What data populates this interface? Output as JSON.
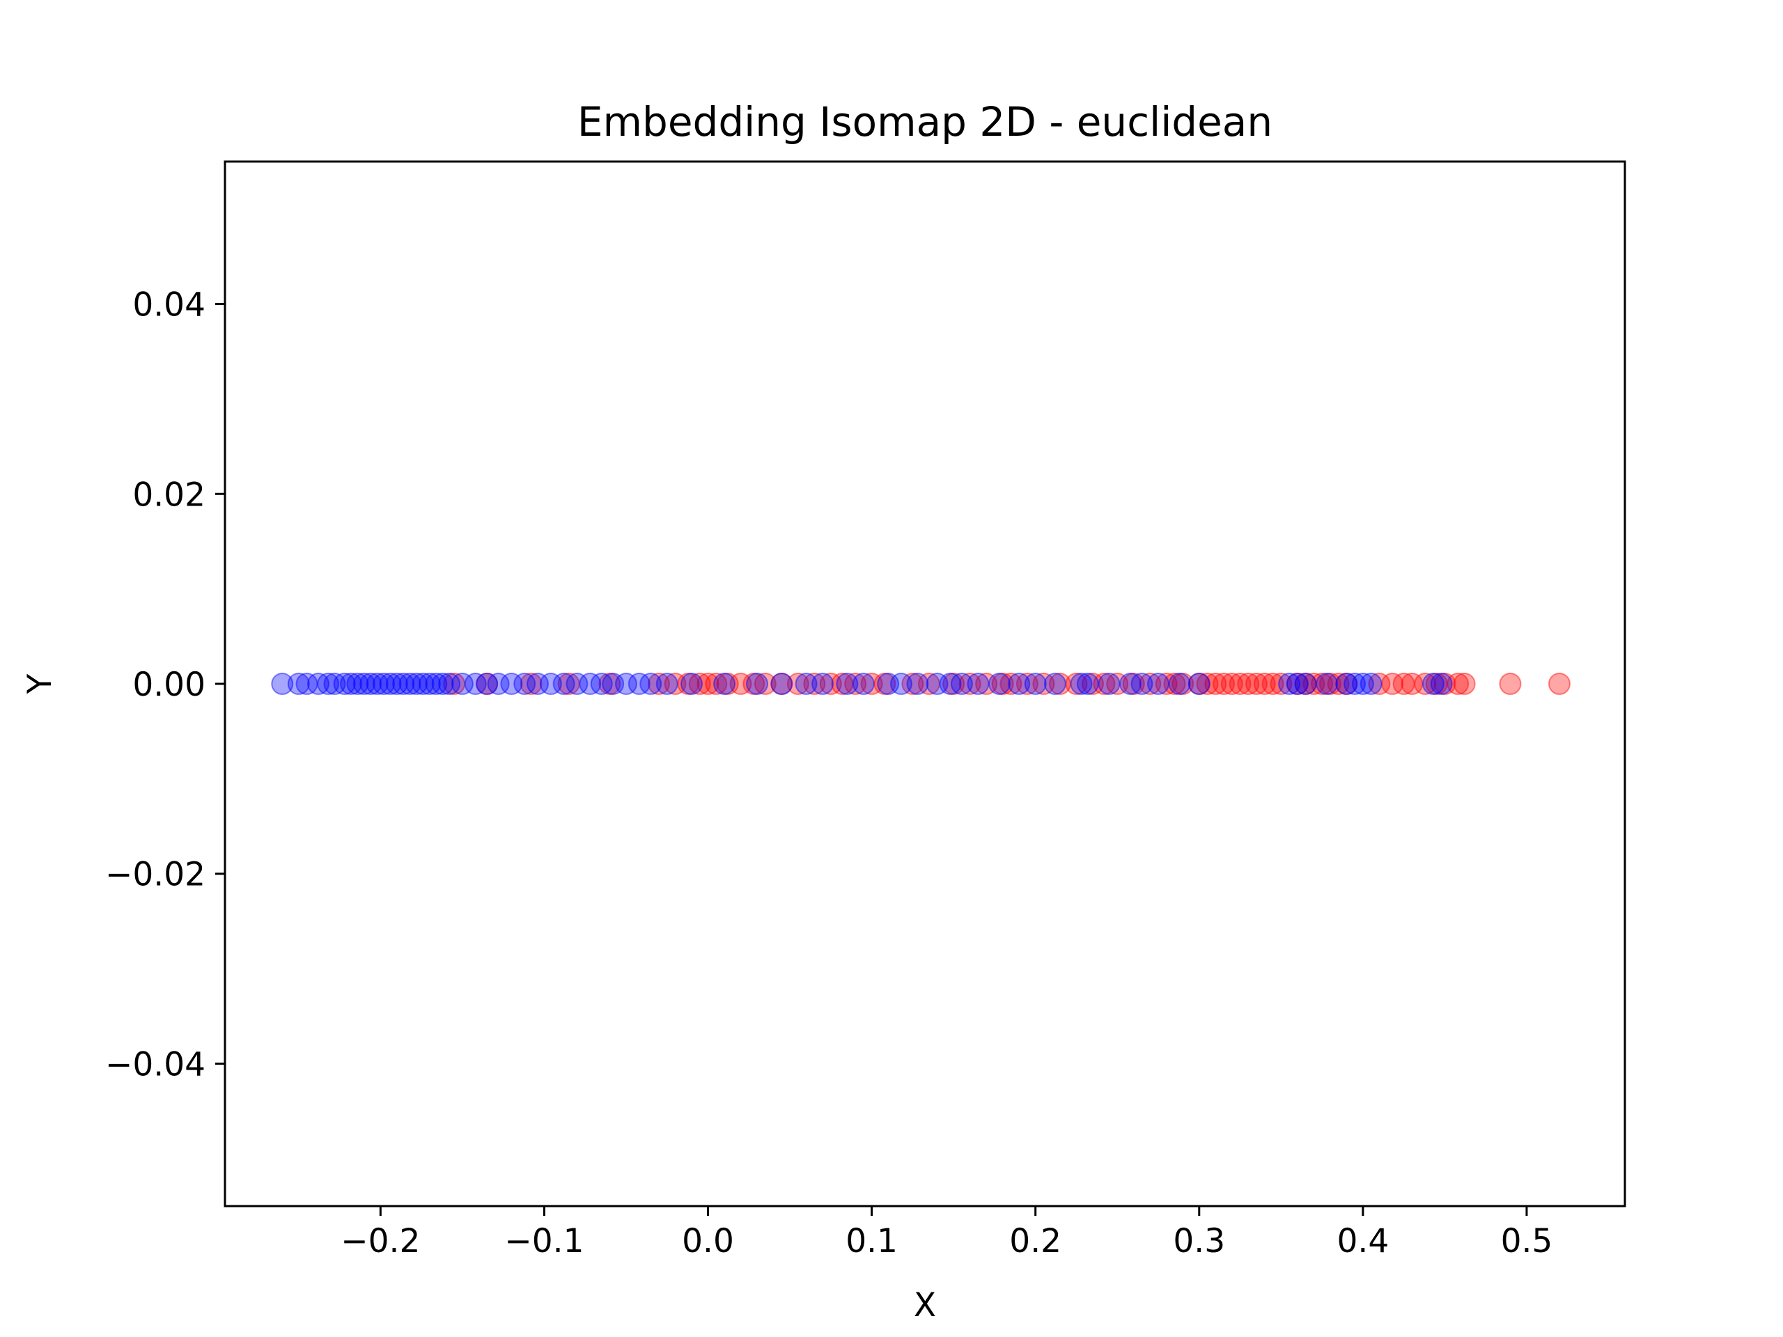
{
  "chart_data": {
    "type": "scatter",
    "title": "Embedding Isomap 2D - euclidean",
    "xlabel": "X",
    "ylabel": "Y",
    "xlim": [
      -0.295,
      0.56
    ],
    "ylim": [
      -0.055,
      0.055
    ],
    "x_ticks": [
      "−0.2",
      "−0.1",
      "0.0",
      "0.1",
      "0.2",
      "0.3",
      "0.4",
      "0.5"
    ],
    "x_tick_values": [
      -0.2,
      -0.1,
      0.0,
      0.1,
      0.2,
      0.3,
      0.4,
      0.5
    ],
    "y_ticks": [
      "0.04",
      "0.02",
      "0.00",
      "−0.02",
      "−0.04"
    ],
    "y_tick_values": [
      0.04,
      0.02,
      0.0,
      -0.02,
      -0.04
    ],
    "grid": false,
    "series": [
      {
        "color": "#ff0000",
        "opacity": 0.35,
        "x": [
          -0.155,
          -0.135,
          -0.108,
          -0.085,
          -0.06,
          -0.03,
          -0.02,
          -0.012,
          -0.005,
          0.0,
          0.005,
          0.012,
          0.02,
          0.028,
          0.035,
          0.045,
          0.055,
          0.065,
          0.075,
          0.082,
          0.09,
          0.1,
          0.108,
          0.125,
          0.135,
          0.15,
          0.16,
          0.17,
          0.18,
          0.185,
          0.195,
          0.205,
          0.215,
          0.225,
          0.235,
          0.242,
          0.25,
          0.26,
          0.27,
          0.28,
          0.285,
          0.29,
          0.3,
          0.305,
          0.31,
          0.315,
          0.32,
          0.325,
          0.33,
          0.335,
          0.34,
          0.345,
          0.35,
          0.36,
          0.365,
          0.37,
          0.375,
          0.38,
          0.385,
          0.39,
          0.41,
          0.418,
          0.425,
          0.43,
          0.438,
          0.445,
          0.45,
          0.458,
          0.462,
          0.49,
          0.52
        ],
        "y": [
          0,
          0,
          0,
          0,
          0,
          0,
          0,
          0,
          0,
          0,
          0,
          0,
          0,
          0,
          0,
          0,
          0,
          0,
          0,
          0,
          0,
          0,
          0,
          0,
          0,
          0,
          0,
          0,
          0,
          0,
          0,
          0,
          0,
          0,
          0,
          0,
          0,
          0,
          0,
          0,
          0,
          0,
          0,
          0,
          0,
          0,
          0,
          0,
          0,
          0,
          0,
          0,
          0,
          0,
          0,
          0,
          0,
          0,
          0,
          0,
          0,
          0,
          0,
          0,
          0,
          0,
          0,
          0,
          0,
          0,
          0
        ]
      },
      {
        "color": "#0000ff",
        "opacity": 0.35,
        "x": [
          -0.26,
          -0.25,
          -0.245,
          -0.238,
          -0.232,
          -0.228,
          -0.222,
          -0.218,
          -0.214,
          -0.21,
          -0.206,
          -0.202,
          -0.198,
          -0.194,
          -0.19,
          -0.186,
          -0.182,
          -0.178,
          -0.174,
          -0.17,
          -0.166,
          -0.162,
          -0.158,
          -0.15,
          -0.142,
          -0.135,
          -0.128,
          -0.12,
          -0.112,
          -0.104,
          -0.096,
          -0.088,
          -0.08,
          -0.072,
          -0.065,
          -0.058,
          -0.05,
          -0.042,
          -0.035,
          -0.025,
          -0.01,
          0.01,
          0.03,
          0.045,
          0.06,
          0.07,
          0.085,
          0.095,
          0.11,
          0.118,
          0.128,
          0.14,
          0.148,
          0.155,
          0.165,
          0.178,
          0.19,
          0.2,
          0.212,
          0.228,
          0.232,
          0.245,
          0.258,
          0.265,
          0.275,
          0.288,
          0.3,
          0.355,
          0.36,
          0.365,
          0.378,
          0.39,
          0.395,
          0.4,
          0.405,
          0.443,
          0.448
        ],
        "y": [
          0,
          0,
          0,
          0,
          0,
          0,
          0,
          0,
          0,
          0,
          0,
          0,
          0,
          0,
          0,
          0,
          0,
          0,
          0,
          0,
          0,
          0,
          0,
          0,
          0,
          0,
          0,
          0,
          0,
          0,
          0,
          0,
          0,
          0,
          0,
          0,
          0,
          0,
          0,
          0,
          0,
          0,
          0,
          0,
          0,
          0,
          0,
          0,
          0,
          0,
          0,
          0,
          0,
          0,
          0,
          0,
          0,
          0,
          0,
          0,
          0,
          0,
          0,
          0,
          0,
          0,
          0,
          0,
          0,
          0,
          0,
          0,
          0,
          0,
          0,
          0,
          0
        ]
      }
    ]
  }
}
